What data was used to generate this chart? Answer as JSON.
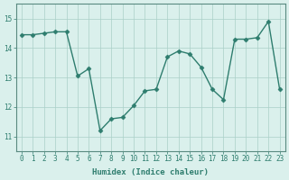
{
  "x": [
    0,
    1,
    2,
    3,
    4,
    5,
    6,
    7,
    8,
    9,
    10,
    11,
    12,
    13,
    14,
    15,
    16,
    17,
    18,
    19,
    20,
    21,
    22,
    23
  ],
  "y": [
    14.45,
    14.45,
    14.5,
    14.55,
    14.55,
    13.05,
    13.3,
    11.2,
    11.6,
    11.65,
    12.05,
    12.55,
    12.6,
    13.7,
    13.9,
    13.8,
    13.35,
    12.6,
    12.25,
    14.3,
    14.3,
    14.35,
    14.9,
    12.6
  ],
  "line_color": "#2e7d6e",
  "marker": "D",
  "marker_size": 2.5,
  "bg_color": "#daf0ec",
  "grid_color": "#aacfc8",
  "xlabel": "Humidex (Indice chaleur)",
  "ylim": [
    10.5,
    15.5
  ],
  "xlim": [
    -0.5,
    23.5
  ],
  "yticks": [
    11,
    12,
    13,
    14,
    15
  ],
  "xticks": [
    0,
    1,
    2,
    3,
    4,
    5,
    6,
    7,
    8,
    9,
    10,
    11,
    12,
    13,
    14,
    15,
    16,
    17,
    18,
    19,
    20,
    21,
    22,
    23
  ],
  "font_color": "#2e7d6e",
  "axis_color": "#5a8a80",
  "tick_fontsize": 5.5,
  "xlabel_fontsize": 6.5,
  "linewidth": 1.0
}
